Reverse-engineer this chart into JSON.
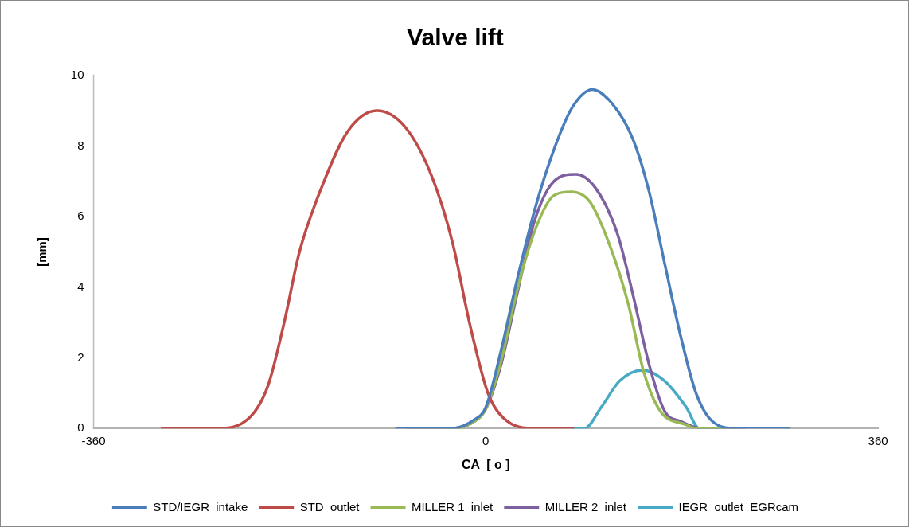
{
  "chart_data": {
    "type": "line",
    "title": "Valve lift",
    "xlabel": "CA  [ o ]",
    "ylabel": "[mm]",
    "xlim": [
      -360,
      360
    ],
    "xticks": [
      -360,
      0,
      360
    ],
    "ylim": [
      0,
      10
    ],
    "yticks": [
      0,
      2,
      4,
      6,
      8,
      10
    ],
    "grid": false,
    "legend": "bottom",
    "marker": "none",
    "line_style": "solid",
    "series": [
      {
        "name": "STD/IEGR_intake",
        "color": "#4a7ebb",
        "x": [
          -82,
          -32,
          -10.5,
          0,
          14,
          28.7,
          45,
          62.6,
          79.5,
          98,
          116,
          135,
          150,
          164,
          179,
          193,
          208,
          230,
          278
        ],
        "values": [
          0,
          0,
          0.25,
          0.6,
          2.2,
          4.2,
          6.2,
          7.9,
          9.1,
          9.6,
          9.2,
          8.2,
          6.7,
          4.7,
          2.6,
          1.0,
          0.2,
          0,
          0
        ]
      },
      {
        "name": "STD_outlet",
        "color": "#be4b48",
        "x": [
          -297,
          -247,
          -217,
          -200,
          -185,
          -171,
          -151,
          -127,
          -100,
          -73,
          -49,
          -30,
          -15,
          2,
          16,
          46,
          80
        ],
        "values": [
          0,
          0,
          0.3,
          1.2,
          3,
          5,
          6.8,
          8.4,
          9,
          8.5,
          7.1,
          5.2,
          3,
          1.0,
          0.3,
          0,
          0
        ]
      },
      {
        "name": "MILLER 1_inlet",
        "color": "#98b954",
        "x": [
          -71,
          -32,
          -10.5,
          0,
          14,
          28.7,
          45,
          62.6,
          78.7,
          96,
          116,
          131,
          145,
          160,
          184,
          193,
          227
        ],
        "values": [
          0,
          0,
          0.2,
          0.55,
          1.9,
          3.9,
          5.6,
          6.6,
          6.7,
          6.4,
          5.0,
          3.5,
          1.6,
          0.5,
          0.1,
          0,
          0
        ]
      },
      {
        "name": "MILLER 2_inlet",
        "color": "#7d60a0",
        "x": [
          -72,
          -32,
          -10.5,
          0,
          14,
          28.7,
          45,
          62.6,
          82.6,
          101,
          121,
          135,
          150,
          164,
          179,
          198,
          237
        ],
        "values": [
          0,
          0,
          0.2,
          0.55,
          1.8,
          3.8,
          5.9,
          7.0,
          7.2,
          6.8,
          5.5,
          3.8,
          1.8,
          0.5,
          0.2,
          0,
          0
        ]
      },
      {
        "name": "IEGR_outlet_EGRcam",
        "color": "#46aac5",
        "x": [
          80,
          90.6,
          106,
          123,
          144,
          164,
          184,
          196,
          214
        ],
        "values": [
          0,
          0,
          0.6,
          1.35,
          1.65,
          1.35,
          0.6,
          0,
          0
        ]
      }
    ]
  }
}
